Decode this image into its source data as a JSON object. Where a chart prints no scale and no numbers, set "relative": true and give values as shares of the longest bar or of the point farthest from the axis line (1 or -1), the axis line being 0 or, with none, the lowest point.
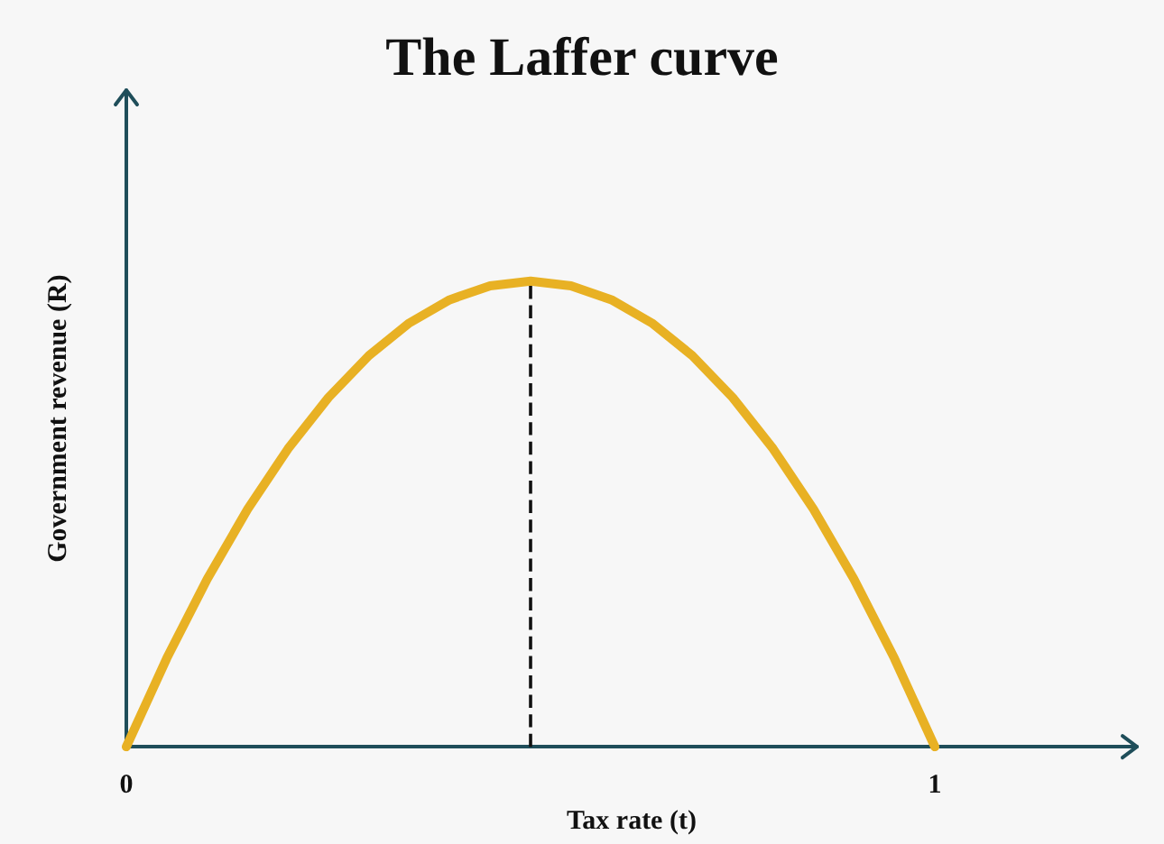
{
  "chart_data": {
    "type": "line",
    "title": "The Laffer curve",
    "xlabel": "Tax rate (t)",
    "ylabel": "Government revenue (R)",
    "relative": true,
    "series": [
      {
        "color": "#e8b124",
        "x": [
          0,
          0.05,
          0.1,
          0.15,
          0.2,
          0.25,
          0.3,
          0.35,
          0.4,
          0.45,
          0.5,
          0.55,
          0.6,
          0.65,
          0.7,
          0.75,
          0.8,
          0.85,
          0.9,
          0.95,
          1
        ],
        "values": [
          0,
          0.19,
          0.36,
          0.51,
          0.64,
          0.75,
          0.84,
          0.91,
          0.96,
          0.99,
          1,
          0.99,
          0.96,
          0.91,
          0.84,
          0.75,
          0.64,
          0.51,
          0.36,
          0.19,
          0
        ]
      }
    ],
    "xlim": [
      0,
      1.25
    ],
    "xticks": [
      0,
      1
    ],
    "tick_labels": "x",
    "marker": "none",
    "line_style": "solid",
    "grid": false,
    "ref_lines": [
      {
        "axis": "x",
        "value": 0.5,
        "color": "#111111",
        "line_style": "dashed"
      }
    ]
  }
}
